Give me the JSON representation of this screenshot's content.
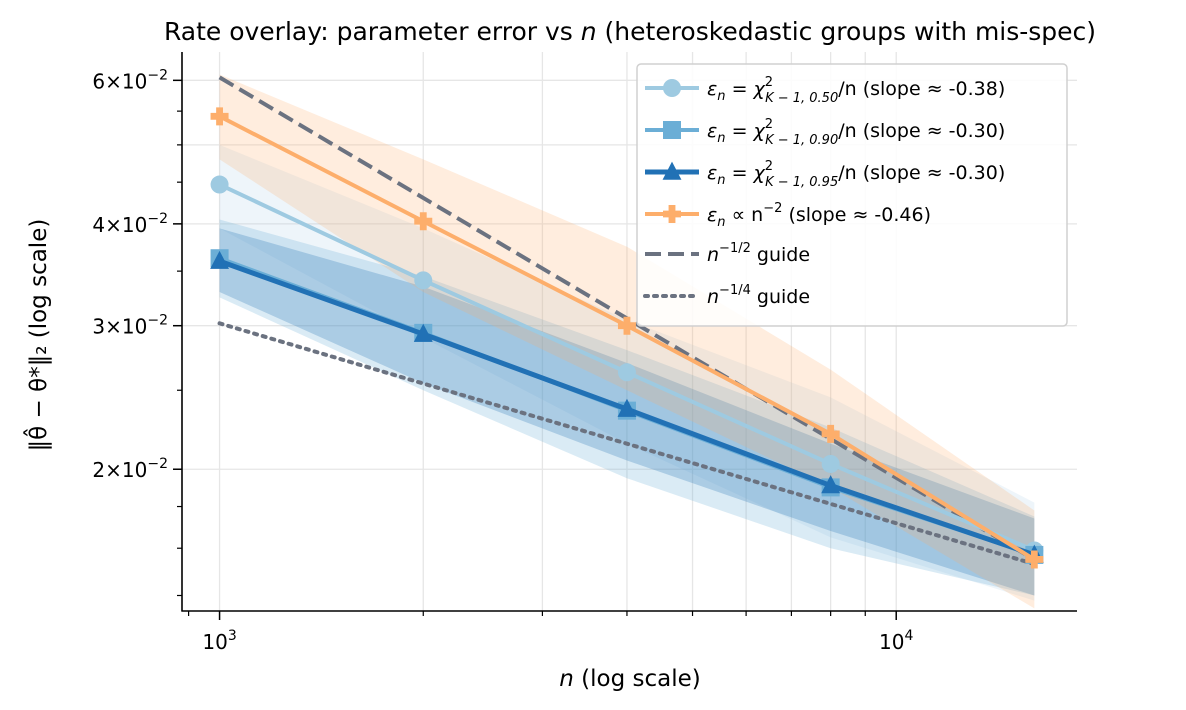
{
  "chart_data": {
    "type": "line",
    "title": "Rate overlay: parameter error vs n (heteroskedastic groups with mis-spec)",
    "xlabel": "n (log scale)",
    "ylabel": "‖θ̂ − θ*‖₂ (log scale)",
    "xscale": "log",
    "yscale": "log",
    "xlim": [
      880,
      18500
    ],
    "ylim": [
      0.0134,
      0.065
    ],
    "x": [
      1000,
      2000,
      4000,
      8000,
      16000
    ],
    "x_tick_labels": [
      {
        "value": 1000,
        "mantissa": "10",
        "exponent": "3"
      },
      {
        "value": 10000,
        "mantissa": "10",
        "exponent": "4"
      }
    ],
    "y_tick_labels": [
      {
        "value": 0.02,
        "mantissa": "2",
        "base": "10",
        "exponent": "−2"
      },
      {
        "value": 0.03,
        "mantissa": "3",
        "base": "10",
        "exponent": "−2"
      },
      {
        "value": 0.04,
        "mantissa": "4",
        "base": "10",
        "exponent": "−2"
      },
      {
        "value": 0.06,
        "mantissa": "6",
        "base": "10",
        "exponent": "−2"
      }
    ],
    "grid": true,
    "legend_position": "top-right",
    "series": [
      {
        "name": "ε_n = χ²_{K−1, 0.50}/n (slope ≈ -0.38)",
        "label_main": "χ",
        "label_sub": "K − 1, 0.50",
        "label_tail": "/n  (slope ≈ -0.38)",
        "color": "#9ecae1",
        "marker": "circle",
        "line_width": 4,
        "values": [
          0.0447,
          0.0341,
          0.0263,
          0.0203,
          0.0159
        ],
        "lower": [
          0.0395,
          0.029,
          0.0215,
          0.0165,
          0.0138
        ],
        "upper": [
          0.05,
          0.0395,
          0.0305,
          0.0245,
          0.0182
        ]
      },
      {
        "name": "ε_n = χ²_{K−1, 0.90}/n (slope ≈ -0.30)",
        "label_main": "χ",
        "label_sub": "K − 1, 0.90",
        "label_tail": "/n  (slope ≈ -0.30)",
        "color": "#6baed6",
        "marker": "square",
        "line_width": 4,
        "values": [
          0.0363,
          0.0294,
          0.0236,
          0.019,
          0.0157
        ],
        "lower": [
          0.0325,
          0.025,
          0.0195,
          0.016,
          0.014
        ],
        "upper": [
          0.0405,
          0.0345,
          0.028,
          0.0225,
          0.0175
        ]
      },
      {
        "name": "ε_n = χ²_{K−1, 0.95}/n (slope ≈ -0.30)",
        "label_main": "χ",
        "label_sub": "K − 1, 0.95",
        "label_tail": "/n  (slope ≈ -0.30)",
        "color": "#2171b5",
        "marker": "triangle",
        "line_width": 5,
        "values": [
          0.036,
          0.0293,
          0.0237,
          0.0191,
          0.0157
        ],
        "lower": [
          0.033,
          0.0255,
          0.0205,
          0.0168,
          0.014
        ],
        "upper": [
          0.0395,
          0.0335,
          0.027,
          0.0215,
          0.0174
        ]
      },
      {
        "name": "ε_n ∝ n^{-2} (slope ≈ -0.46)",
        "label_main": "∝ n",
        "label_sup": "−2",
        "label_tail": "  (slope ≈ -0.46)",
        "color": "#fdae6b",
        "marker": "plus",
        "line_width": 4,
        "values": [
          0.0542,
          0.0403,
          0.03,
          0.0221,
          0.0155
        ],
        "lower": [
          0.048,
          0.033,
          0.025,
          0.019,
          0.0135
        ],
        "upper": [
          0.061,
          0.048,
          0.0375,
          0.0265,
          0.0178
        ]
      }
    ],
    "guides": [
      {
        "name": "n^{-1/2} guide",
        "label_base": "n",
        "label_sup": "−1/2",
        "label_tail": " guide",
        "style": "dashed",
        "color": "#6b7280",
        "points": [
          [
            1000,
            0.0605
          ],
          [
            16000,
            0.0155
          ]
        ]
      },
      {
        "name": "n^{-1/4} guide",
        "label_base": "n",
        "label_sup": "−1/4",
        "label_tail": " guide",
        "style": "dotted",
        "color": "#6b7280",
        "points": [
          [
            1000,
            0.0302
          ],
          [
            16000,
            0.0153
          ]
        ]
      }
    ]
  }
}
